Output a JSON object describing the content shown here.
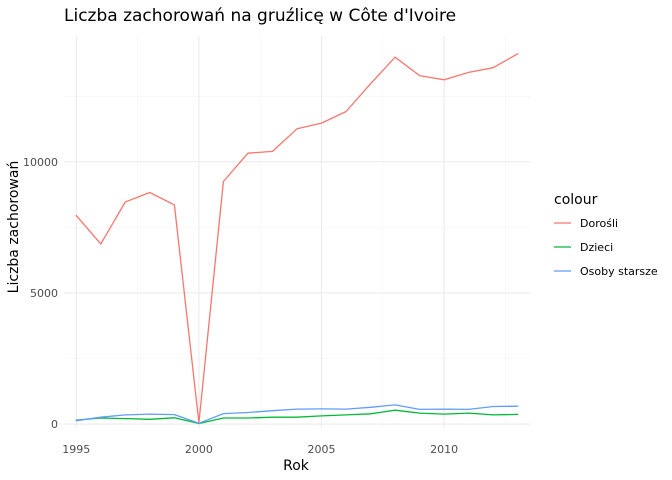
{
  "chart_data": {
    "type": "line",
    "title": "Liczba zachorowań na gruźlicę w Côte d'Ivoire",
    "xlabel": "Rok",
    "ylabel": "Liczba zachorowań",
    "x": [
      1995,
      1996,
      1997,
      1998,
      1999,
      2000,
      2001,
      2002,
      2003,
      2004,
      2005,
      2006,
      2007,
      2008,
      2009,
      2010,
      2011,
      2012,
      2013
    ],
    "xlim": [
      1994.5,
      2013.5
    ],
    "ylim": [
      -150,
      14800
    ],
    "x_ticks": [
      1995,
      2000,
      2005,
      2010
    ],
    "x_tick_labels": [
      "1995",
      "2000",
      "2005",
      "2010"
    ],
    "y_ticks": [
      0,
      5000,
      10000
    ],
    "y_tick_labels": [
      "0",
      "5000",
      "10000"
    ],
    "grid": true,
    "legend": {
      "title": "colour",
      "position": "right"
    },
    "series": [
      {
        "name": "Dorośli",
        "color": "#F8766D",
        "values": [
          7950,
          6870,
          8470,
          8830,
          8360,
          50,
          9250,
          10330,
          10400,
          11260,
          11480,
          11920,
          12980,
          13990,
          13290,
          13130,
          13410,
          13590,
          14120
        ]
      },
      {
        "name": "Dzieci",
        "color": "#00BA38",
        "values": [
          150,
          230,
          210,
          180,
          240,
          20,
          230,
          230,
          260,
          260,
          310,
          350,
          390,
          530,
          420,
          380,
          420,
          350,
          370
        ]
      },
      {
        "name": "Osoby starsze",
        "color": "#619CFF",
        "values": [
          130,
          260,
          350,
          380,
          360,
          30,
          400,
          440,
          510,
          570,
          580,
          570,
          640,
          730,
          560,
          570,
          560,
          670,
          680
        ]
      }
    ]
  }
}
